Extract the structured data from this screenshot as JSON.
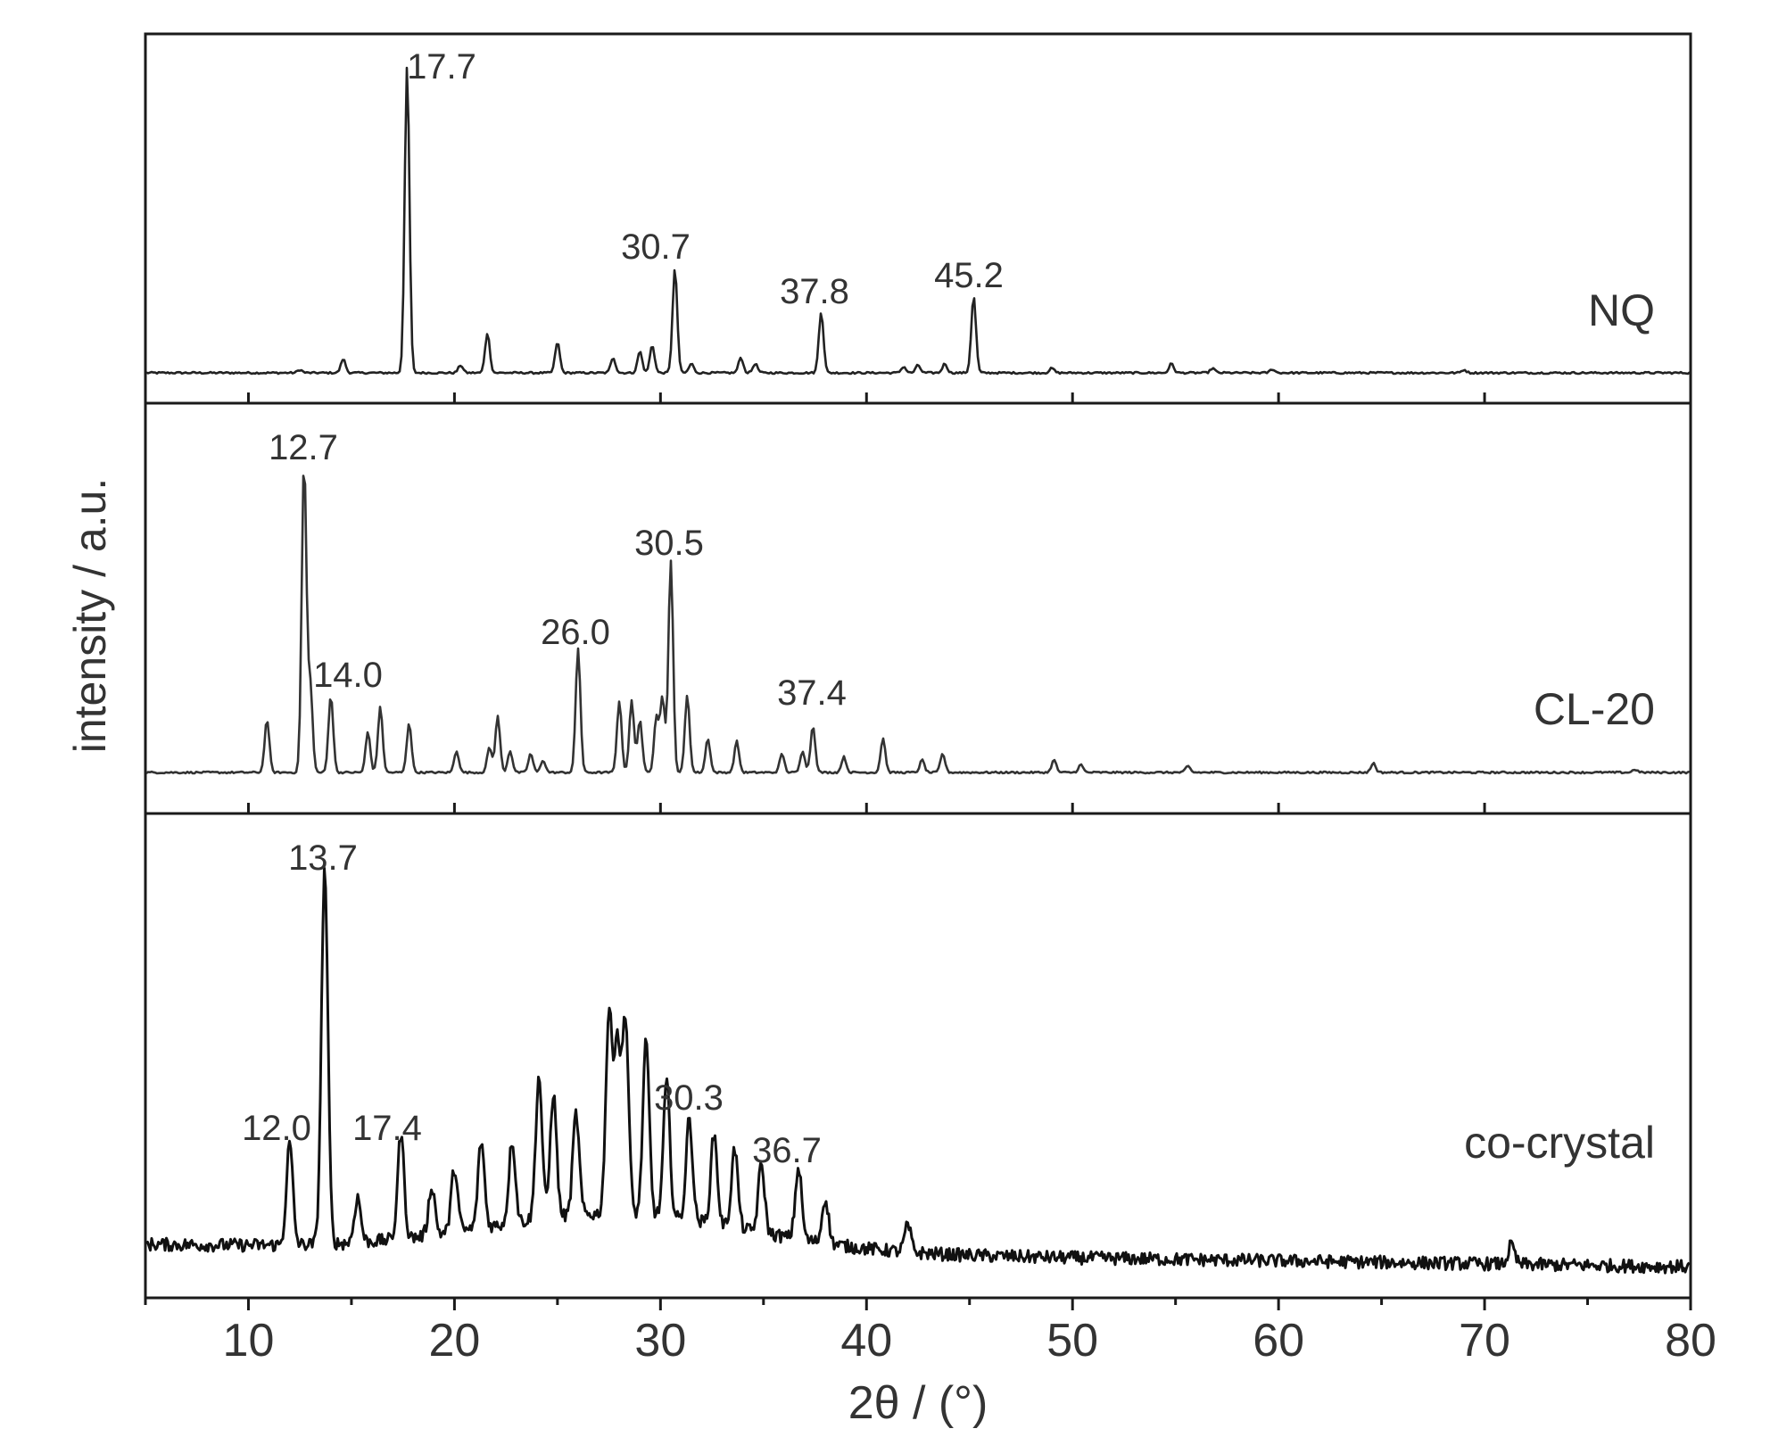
{
  "chart_data": {
    "type": "line",
    "xlabel": "2θ / (°)",
    "ylabel": "intensity / a.u.",
    "xlim": [
      5,
      80
    ],
    "xticks": [
      10,
      20,
      30,
      40,
      50,
      60,
      70,
      80
    ],
    "grid": false,
    "legend": "none",
    "stacked_panels": true,
    "panels": [
      {
        "name": "NQ",
        "color": "#222222",
        "baseline": 0.04,
        "peaks": [
          {
            "x": 12.5,
            "y": 0.01
          },
          {
            "x": 14.6,
            "y": 0.045
          },
          {
            "x": 17.7,
            "y": 1.0,
            "label": "17.7"
          },
          {
            "x": 20.3,
            "y": 0.025
          },
          {
            "x": 21.6,
            "y": 0.13
          },
          {
            "x": 25.0,
            "y": 0.1
          },
          {
            "x": 27.7,
            "y": 0.05
          },
          {
            "x": 29.0,
            "y": 0.07
          },
          {
            "x": 29.6,
            "y": 0.09
          },
          {
            "x": 30.7,
            "y": 0.34,
            "label": "30.7"
          },
          {
            "x": 31.5,
            "y": 0.03
          },
          {
            "x": 33.9,
            "y": 0.05
          },
          {
            "x": 34.6,
            "y": 0.03
          },
          {
            "x": 37.8,
            "y": 0.2,
            "label": "37.8"
          },
          {
            "x": 41.8,
            "y": 0.02
          },
          {
            "x": 42.5,
            "y": 0.025
          },
          {
            "x": 43.8,
            "y": 0.03
          },
          {
            "x": 45.2,
            "y": 0.25,
            "label": "45.2"
          },
          {
            "x": 49.0,
            "y": 0.015
          },
          {
            "x": 54.8,
            "y": 0.03
          },
          {
            "x": 56.8,
            "y": 0.015
          },
          {
            "x": 59.7,
            "y": 0.012
          },
          {
            "x": 69.0,
            "y": 0.01
          }
        ]
      },
      {
        "name": "CL-20",
        "color": "#333333",
        "baseline": 0.03,
        "peaks": [
          {
            "x": 10.9,
            "y": 0.17
          },
          {
            "x": 12.7,
            "y": 1.0,
            "label": "12.7"
          },
          {
            "x": 13.0,
            "y": 0.28
          },
          {
            "x": 14.0,
            "y": 0.25,
            "label": "14.0"
          },
          {
            "x": 15.8,
            "y": 0.13
          },
          {
            "x": 16.4,
            "y": 0.21
          },
          {
            "x": 17.8,
            "y": 0.16
          },
          {
            "x": 20.1,
            "y": 0.07
          },
          {
            "x": 21.7,
            "y": 0.08
          },
          {
            "x": 22.1,
            "y": 0.18
          },
          {
            "x": 22.7,
            "y": 0.07
          },
          {
            "x": 23.7,
            "y": 0.06
          },
          {
            "x": 24.3,
            "y": 0.04
          },
          {
            "x": 26.0,
            "y": 0.4,
            "label": "26.0"
          },
          {
            "x": 28.0,
            "y": 0.23
          },
          {
            "x": 28.6,
            "y": 0.23
          },
          {
            "x": 29.0,
            "y": 0.17
          },
          {
            "x": 29.8,
            "y": 0.18
          },
          {
            "x": 30.1,
            "y": 0.24
          },
          {
            "x": 30.5,
            "y": 0.68,
            "label": "30.5"
          },
          {
            "x": 31.3,
            "y": 0.25
          },
          {
            "x": 32.3,
            "y": 0.11
          },
          {
            "x": 33.7,
            "y": 0.1
          },
          {
            "x": 35.9,
            "y": 0.06
          },
          {
            "x": 36.9,
            "y": 0.07
          },
          {
            "x": 37.4,
            "y": 0.15,
            "label": "37.4"
          },
          {
            "x": 38.9,
            "y": 0.05
          },
          {
            "x": 40.8,
            "y": 0.11
          },
          {
            "x": 42.7,
            "y": 0.04
          },
          {
            "x": 43.7,
            "y": 0.06
          },
          {
            "x": 49.1,
            "y": 0.04
          },
          {
            "x": 50.4,
            "y": 0.025
          },
          {
            "x": 55.6,
            "y": 0.02
          },
          {
            "x": 64.6,
            "y": 0.03
          },
          {
            "x": 77.3,
            "y": 0.01
          }
        ]
      },
      {
        "name": "co-crystal",
        "color": "#111111",
        "baseline": 0.12,
        "peaks": [
          {
            "x": 12.0,
            "y": 0.27,
            "label": "12.0"
          },
          {
            "x": 13.7,
            "y": 1.0,
            "label": "13.7"
          },
          {
            "x": 15.3,
            "y": 0.12
          },
          {
            "x": 17.4,
            "y": 0.28,
            "label": "17.4"
          },
          {
            "x": 18.9,
            "y": 0.13
          },
          {
            "x": 20.0,
            "y": 0.17
          },
          {
            "x": 21.3,
            "y": 0.23
          },
          {
            "x": 22.8,
            "y": 0.22
          },
          {
            "x": 24.1,
            "y": 0.38
          },
          {
            "x": 24.8,
            "y": 0.33
          },
          {
            "x": 25.9,
            "y": 0.27
          },
          {
            "x": 27.5,
            "y": 0.53
          },
          {
            "x": 27.9,
            "y": 0.45
          },
          {
            "x": 28.3,
            "y": 0.52
          },
          {
            "x": 29.3,
            "y": 0.46
          },
          {
            "x": 30.3,
            "y": 0.36,
            "label": "30.3"
          },
          {
            "x": 31.4,
            "y": 0.27
          },
          {
            "x": 32.6,
            "y": 0.24
          },
          {
            "x": 33.6,
            "y": 0.21
          },
          {
            "x": 34.9,
            "y": 0.18
          },
          {
            "x": 36.7,
            "y": 0.19,
            "label": "36.7"
          },
          {
            "x": 38.0,
            "y": 0.12
          },
          {
            "x": 42.0,
            "y": 0.07
          },
          {
            "x": 71.3,
            "y": 0.05
          }
        ]
      }
    ]
  }
}
